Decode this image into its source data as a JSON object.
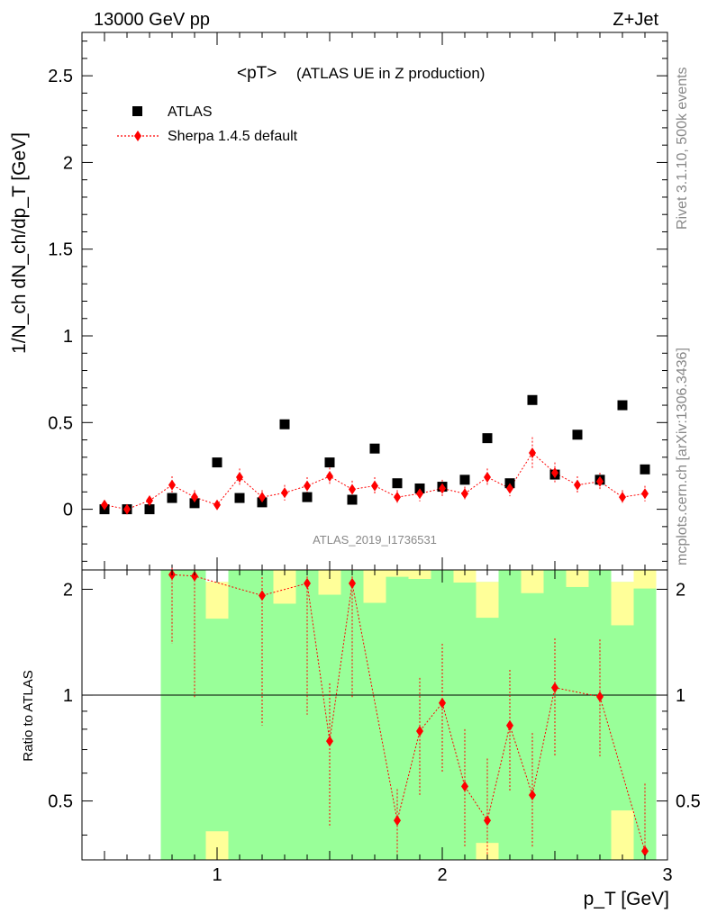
{
  "header": {
    "left": "13000 GeV pp",
    "right": "Z+Jet"
  },
  "side_labels": {
    "rivet": "Rivet 3.1.10,  500k events",
    "mcplots": "mcplots.cern.ch [arXiv:1306.3436]"
  },
  "chart_data": [
    {
      "type": "scatter",
      "title": "<pT>",
      "subtitle": "(ATLAS UE in Z production)",
      "watermark": "ATLAS_2019_I1736531",
      "ylabel": "1/N_ch dN_ch/dp_T [GeV]",
      "xlim": [
        0.4,
        3.0
      ],
      "ylim": [
        -0.35,
        2.75
      ],
      "yticks": [
        "0",
        "0.5",
        "1",
        "1.5",
        "2",
        "2.5"
      ],
      "legend_position": "top-left",
      "x": [
        0.5,
        0.6,
        0.7,
        0.8,
        0.9,
        1.0,
        1.1,
        1.2,
        1.3,
        1.4,
        1.5,
        1.6,
        1.7,
        1.8,
        1.9,
        2.0,
        2.1,
        2.2,
        2.3,
        2.4,
        2.5,
        2.6,
        2.7,
        2.8,
        2.9
      ],
      "series": [
        {
          "name": "ATLAS",
          "color": "#000000",
          "marker": "square",
          "values": [
            0.0,
            0.0,
            0.0,
            0.065,
            0.035,
            0.27,
            0.065,
            0.04,
            0.49,
            0.07,
            0.27,
            0.055,
            0.35,
            0.15,
            0.12,
            0.13,
            0.17,
            0.41,
            0.15,
            0.63,
            0.2,
            0.43,
            0.17,
            0.6,
            0.23
          ]
        },
        {
          "name": "Sherpa 1.4.5 default",
          "color": "#ff0000",
          "marker": "diamond",
          "line": "dotted",
          "values": [
            0.025,
            0.0,
            0.05,
            0.14,
            0.07,
            0.025,
            0.185,
            0.07,
            0.095,
            0.135,
            0.19,
            0.115,
            0.135,
            0.07,
            0.09,
            0.12,
            0.09,
            0.185,
            0.12,
            0.325,
            0.21,
            0.14,
            0.16,
            0.07,
            0.09
          ],
          "errors": [
            0.015,
            0.0,
            0.025,
            0.05,
            0.04,
            0.02,
            0.05,
            0.04,
            0.045,
            0.05,
            0.05,
            0.05,
            0.05,
            0.04,
            0.045,
            0.05,
            0.04,
            0.05,
            0.045,
            0.09,
            0.06,
            0.05,
            0.05,
            0.04,
            0.045
          ]
        }
      ]
    },
    {
      "type": "scatter",
      "ylabel": "Ratio to ATLAS",
      "xlabel": "p_T [GeV]",
      "xlim": [
        0.4,
        3.0
      ],
      "ylim": [
        0.34,
        2.27
      ],
      "xticks": [
        "1",
        "2",
        "3"
      ],
      "yticks": [
        "0.5",
        "1",
        "2"
      ],
      "reference_line": 1,
      "band_x": [
        0.75,
        0.85,
        0.95,
        1.05,
        1.15,
        1.25,
        1.35,
        1.45,
        1.55,
        1.65,
        1.75,
        1.85,
        1.95,
        2.05,
        2.15,
        2.25,
        2.35,
        2.45,
        2.55,
        2.65,
        2.75,
        2.85,
        2.95
      ],
      "bands": [
        {
          "name": "stat",
          "color": "#99ff99",
          "lo": [
            0.0,
            0.0,
            0.4,
            0.0,
            0.0,
            0.0,
            0.0,
            0.0,
            0.0,
            0.0,
            0.0,
            0.0,
            0.0,
            0.0,
            0.37,
            0.0,
            0.0,
            0.0,
            0.0,
            0.0,
            0.4,
            0.0
          ],
          "hi": [
            2.3,
            2.3,
            2.1,
            2.3,
            2.3,
            2.3,
            2.3,
            2.3,
            2.3,
            2.3,
            2.3,
            2.3,
            2.3,
            2.3,
            2.1,
            2.3,
            2.3,
            2.3,
            2.3,
            2.3,
            2.1,
            2.3
          ]
        },
        {
          "name": "stat+syst",
          "color": "#ffff99",
          "lo": [
            0.0,
            0.0,
            0.36,
            0.0,
            0.0,
            0.0,
            0.0,
            0.0,
            0.0,
            0.0,
            0.0,
            0.0,
            0.0,
            0.0,
            0.34,
            0.0,
            0.0,
            0.0,
            0.0,
            0.0,
            0.36,
            0.0
          ],
          "hi": [
            2.3,
            2.3,
            2.3,
            2.3,
            2.3,
            2.3,
            2.3,
            2.3,
            2.3,
            2.3,
            2.3,
            2.3,
            2.3,
            2.3,
            2.3,
            2.3,
            2.3,
            2.3,
            2.3,
            2.3,
            2.3,
            2.3
          ]
        }
      ],
      "band_gaps": [
        {
          "x": [
            0.95,
            1.05
          ],
          "ratio_lo": 2.1,
          "ratio_hi": 2.27
        },
        {
          "x": [
            2.15,
            2.25
          ],
          "ratio_lo": 2.1,
          "ratio_hi": 2.27
        },
        {
          "x": [
            2.75,
            2.85
          ],
          "ratio_lo": 2.1,
          "ratio_hi": 2.27
        }
      ],
      "yellow_only": [
        {
          "x": [
            0.95,
            1.05
          ],
          "lo": 1.65,
          "hi": 2.1
        },
        {
          "x": [
            1.25,
            1.35
          ],
          "lo": 1.82,
          "hi": 2.27
        },
        {
          "x": [
            1.45,
            1.55
          ],
          "lo": 1.93,
          "hi": 2.27
        },
        {
          "x": [
            1.65,
            1.75
          ],
          "lo": 1.83,
          "hi": 2.27
        },
        {
          "x": [
            1.75,
            1.85
          ],
          "lo": 2.17,
          "hi": 2.27
        },
        {
          "x": [
            1.85,
            1.95
          ],
          "lo": 2.14,
          "hi": 2.27
        },
        {
          "x": [
            2.05,
            2.15
          ],
          "lo": 2.09,
          "hi": 2.27
        },
        {
          "x": [
            2.15,
            2.25
          ],
          "lo": 1.66,
          "hi": 2.1
        },
        {
          "x": [
            2.35,
            2.45
          ],
          "lo": 1.95,
          "hi": 2.27
        },
        {
          "x": [
            2.55,
            2.65
          ],
          "lo": 2.03,
          "hi": 2.27
        },
        {
          "x": [
            2.75,
            2.85
          ],
          "lo": 1.58,
          "hi": 2.1
        },
        {
          "x": [
            2.85,
            2.95
          ],
          "lo": 2.01,
          "hi": 2.27
        },
        {
          "x": [
            0.95,
            1.05
          ],
          "lo": 0.34,
          "hi": 0.41
        },
        {
          "x": [
            2.15,
            2.25
          ],
          "lo": 0.34,
          "hi": 0.38
        },
        {
          "x": [
            2.75,
            2.85
          ],
          "lo": 0.34,
          "hi": 0.47
        }
      ],
      "series": [
        {
          "name": "Sherpa 1.4.5 default",
          "color": "#ff0000",
          "x": [
            0.8,
            0.9,
            1.2,
            1.4,
            1.5,
            1.6,
            1.8,
            1.9,
            2.0,
            2.1,
            2.2,
            2.3,
            2.4,
            2.5,
            2.7,
            2.9
          ],
          "values": [
            2.2,
            2.18,
            1.92,
            2.08,
            0.74,
            2.08,
            0.44,
            0.79,
            0.95,
            0.55,
            0.44,
            0.82,
            0.52,
            1.05,
            0.99,
            0.36
          ],
          "err_lo": [
            0.8,
            1.2,
            1.1,
            1.2,
            0.32,
            1.1,
            0.1,
            0.27,
            0.35,
            0.18,
            0.13,
            0.29,
            0.15,
            0.38,
            0.32,
            0.05
          ],
          "err_hi": [
            0.1,
            0.1,
            0.35,
            0.2,
            0.34,
            0.2,
            0.1,
            0.33,
            0.45,
            0.25,
            0.22,
            0.36,
            0.26,
            0.4,
            0.45,
            0.2
          ]
        }
      ]
    }
  ]
}
